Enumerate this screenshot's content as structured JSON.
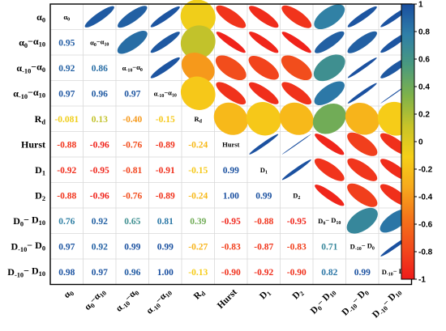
{
  "chart_data": {
    "type": "heatmap",
    "variables": [
      "α0",
      "α0−α10",
      "α−10−α0",
      "α−10−α10",
      "Rd",
      "Hurst",
      "D1",
      "D2",
      "D0−D10",
      "D−10−D0",
      "D−10−D10"
    ],
    "variable_labels": [
      {
        "base": "α",
        "sub": "0",
        "mid": "",
        "sub2": ""
      },
      {
        "base": "α",
        "sub": "0",
        "mid": "−α",
        "sub2": "10"
      },
      {
        "base": "α",
        "sub": "-10",
        "mid": "−α",
        "sub2": "0"
      },
      {
        "base": "α",
        "sub": "-10",
        "mid": "−α",
        "sub2": "10"
      },
      {
        "base": "R",
        "sub": "d",
        "mid": "",
        "sub2": ""
      },
      {
        "base": "Hurst",
        "sub": "",
        "mid": "",
        "sub2": ""
      },
      {
        "base": "D",
        "sub": "1",
        "mid": "",
        "sub2": ""
      },
      {
        "base": "D",
        "sub": "2",
        "mid": "",
        "sub2": ""
      },
      {
        "base": "D",
        "sub": "0",
        "mid": "− D",
        "sub2": "10"
      },
      {
        "base": "D",
        "sub": "-10",
        "mid": "− D",
        "sub2": "0"
      },
      {
        "base": "D",
        "sub": "-10",
        "mid": "− D",
        "sub2": "10"
      }
    ],
    "lower_triangle_labels": [
      [],
      [
        "0.95"
      ],
      [
        "0.92",
        "0.86"
      ],
      [
        "0.97",
        "0.96",
        "0.97"
      ],
      [
        "-0.081",
        "0.13",
        "-0.40",
        "-0.15"
      ],
      [
        "-0.88",
        "-0.96",
        "-0.76",
        "-0.89",
        "-0.24"
      ],
      [
        "-0.92",
        "-0.95",
        "-0.81",
        "-0.91",
        "-0.15",
        "0.99"
      ],
      [
        "-0.88",
        "-0.96",
        "-0.76",
        "-0.89",
        "-0.24",
        "1.00",
        "0.99"
      ],
      [
        "0.76",
        "0.92",
        "0.65",
        "0.81",
        "0.39",
        "-0.95",
        "-0.88",
        "-0.95"
      ],
      [
        "0.97",
        "0.92",
        "0.99",
        "0.99",
        "-0.27",
        "-0.83",
        "-0.87",
        "-0.83",
        "0.71"
      ],
      [
        "0.98",
        "0.97",
        "0.96",
        "1.00",
        "-0.13",
        "-0.90",
        "-0.92",
        "-0.90",
        "0.82",
        "0.99"
      ]
    ],
    "colorbar": {
      "min": -1,
      "max": 1,
      "ticks": [
        "1",
        "0.8",
        "0.6",
        "0.4",
        "0.2",
        "0",
        "-0.2",
        "-0.4",
        "-0.6",
        "-0.8",
        "-1"
      ],
      "colors": [
        "#1a4fa0",
        "#2f7fa8",
        "#4a9a7e",
        "#7fb24a",
        "#c8c428",
        "#f6cf18",
        "#f7a91c",
        "#f4741a",
        "#f24a1c",
        "#ef1b1b"
      ]
    }
  }
}
